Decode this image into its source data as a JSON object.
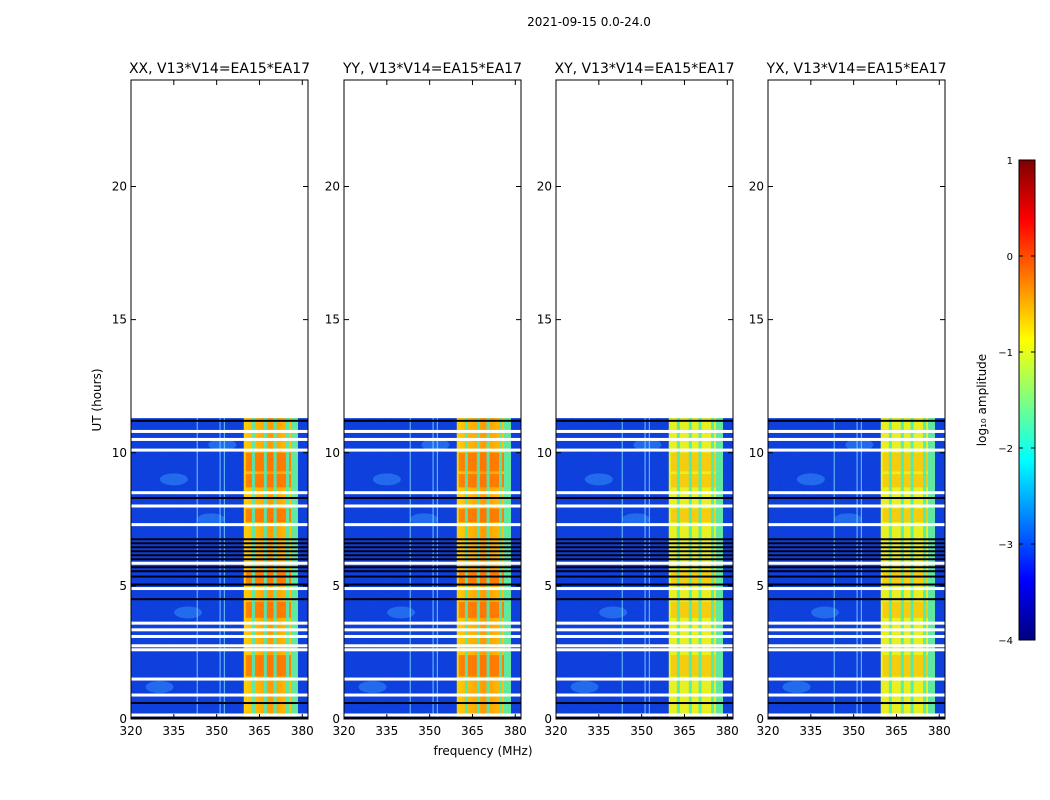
{
  "suptitle": "2021-09-15 0.0-24.0",
  "chart_data": [
    {
      "type": "heatmap",
      "title": "XX, V13*V14=EA15*EA17",
      "xlabel": "frequency (MHz)",
      "ylabel": "UT (hours)",
      "xlim": [
        320,
        382
      ],
      "ylim": [
        0,
        24
      ],
      "xticks": [
        320,
        335,
        350,
        365,
        380
      ],
      "yticks": [
        0,
        5,
        10,
        15,
        20
      ],
      "data_extent_hours": [
        0,
        11.3
      ],
      "bright_band_mhz": [
        359.5,
        378.5
      ]
    },
    {
      "type": "heatmap",
      "title": "YY, V13*V14=EA15*EA17",
      "xlabel": "frequency (MHz)",
      "ylabel": "UT (hours)",
      "xlim": [
        320,
        382
      ],
      "ylim": [
        0,
        24
      ],
      "xticks": [
        320,
        335,
        350,
        365,
        380
      ],
      "yticks": [
        0,
        5,
        10,
        15,
        20
      ],
      "data_extent_hours": [
        0,
        11.3
      ],
      "bright_band_mhz": [
        359.5,
        378.5
      ]
    },
    {
      "type": "heatmap",
      "title": "XY, V13*V14=EA15*EA17",
      "xlabel": "frequency (MHz)",
      "ylabel": "UT (hours)",
      "xlim": [
        320,
        382
      ],
      "ylim": [
        0,
        24
      ],
      "xticks": [
        320,
        335,
        350,
        365,
        380
      ],
      "yticks": [
        0,
        5,
        10,
        15,
        20
      ],
      "data_extent_hours": [
        0,
        11.3
      ],
      "bright_band_mhz": [
        359.5,
        378.5
      ]
    },
    {
      "type": "heatmap",
      "title": "YX, V13*V14=EA15*EA17",
      "xlabel": "frequency (MHz)",
      "ylabel": "UT (hours)",
      "xlim": [
        320,
        382
      ],
      "ylim": [
        0,
        24
      ],
      "xticks": [
        320,
        335,
        350,
        365,
        380
      ],
      "yticks": [
        0,
        5,
        10,
        15,
        20
      ],
      "data_extent_hours": [
        0,
        11.3
      ],
      "bright_band_mhz": [
        359.5,
        378.5
      ]
    }
  ],
  "gap_hours": [
    0.15,
    0.9,
    1.5,
    2.6,
    2.75,
    3.1,
    3.35,
    3.6,
    4.9,
    5.85,
    7.3,
    8.0,
    8.5,
    10.1,
    10.5,
    10.8
  ],
  "dark_hours": [
    0.05,
    0.6,
    4.5,
    5.05,
    5.35,
    5.55,
    5.7,
    6.0,
    6.15,
    6.3,
    6.45,
    6.6,
    6.75,
    8.3,
    11.2
  ],
  "colorbar": {
    "label": "log₁₀ amplitude",
    "min": -4,
    "max": 1,
    "ticks": [
      "1",
      "0",
      "−1",
      "−2",
      "−3",
      "−4"
    ],
    "tick_values": [
      1,
      0,
      -1,
      -2,
      -3,
      -4
    ],
    "colormap": [
      "#00007f",
      "#0000ff",
      "#007fff",
      "#00ffff",
      "#7fff7f",
      "#ffff00",
      "#ff7f00",
      "#ff0000",
      "#7f0000"
    ]
  }
}
